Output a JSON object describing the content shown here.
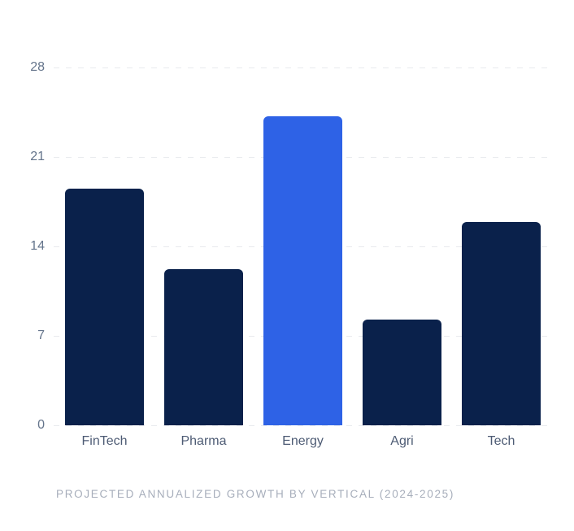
{
  "chart_data": {
    "type": "bar",
    "categories": [
      "FinTech",
      "Pharma",
      "Energy",
      "Agri",
      "Tech"
    ],
    "values": [
      18.5,
      12.2,
      24.2,
      8.3,
      15.9
    ],
    "title": "PROJECTED ANNUALIZED GROWTH BY VERTICAL (2024-2025)",
    "xlabel": "",
    "ylabel": "",
    "ylim": [
      0,
      28
    ],
    "yticks": [
      28,
      21,
      14,
      7,
      0
    ],
    "grid": "horizontal-dashed",
    "legend": "none",
    "highlight_category": "Energy",
    "colors": {
      "bar_default": "#0a214b",
      "bar_highlight": "#2e62e6",
      "gridline": "#e8eaee",
      "tick_label": "#64748b",
      "category_label": "#4d5b74",
      "caption": "#a7aebb",
      "background": "#ffffff"
    }
  }
}
